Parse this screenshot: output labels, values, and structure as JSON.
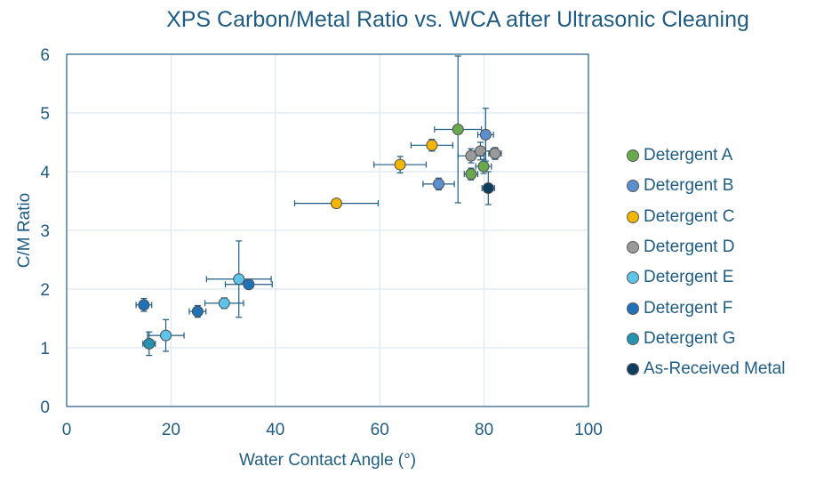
{
  "chart_data": {
    "type": "scatter",
    "title": "XPS Carbon/Metal Ratio vs. WCA after Ultrasonic Cleaning",
    "xlabel": "Water Contact Angle (°)",
    "ylabel": "C/M Ratio",
    "xlim": [
      0,
      100
    ],
    "ylim": [
      0,
      6
    ],
    "xticks": [
      0,
      20,
      40,
      60,
      80,
      100
    ],
    "yticks": [
      0,
      1,
      2,
      3,
      4,
      5,
      6
    ],
    "grid": true,
    "legend_position": "right",
    "series": [
      {
        "name": "Detergent A",
        "color": "#6aa84f",
        "points": [
          {
            "x": 75.0,
            "y": 4.72,
            "xerr": 4.5,
            "yerr": 1.25
          },
          {
            "x": 79.9,
            "y": 4.09,
            "xerr": 1.5,
            "yerr": 0.12
          },
          {
            "x": 77.5,
            "y": 3.96,
            "xerr": 1.3,
            "yerr": 0.1
          }
        ]
      },
      {
        "name": "Detergent B",
        "color": "#5b8fd0",
        "points": [
          {
            "x": 80.3,
            "y": 4.63,
            "xerr": 1.5,
            "yerr": 0.45
          },
          {
            "x": 71.3,
            "y": 3.79,
            "xerr": 3.0,
            "yerr": 0.1
          }
        ]
      },
      {
        "name": "Detergent C",
        "color": "#f2b600",
        "points": [
          {
            "x": 70.0,
            "y": 4.45,
            "xerr": 4.0,
            "yerr": 0.1
          },
          {
            "x": 63.9,
            "y": 4.12,
            "xerr": 5.0,
            "yerr": 0.14
          },
          {
            "x": 51.7,
            "y": 3.46,
            "xerr": 8.0,
            "yerr": 0.06
          }
        ]
      },
      {
        "name": "Detergent D",
        "color": "#9a9a9a",
        "points": [
          {
            "x": 79.3,
            "y": 4.35,
            "xerr": 2.0,
            "yerr": 0.15
          },
          {
            "x": 82.1,
            "y": 4.31,
            "xerr": 1.2,
            "yerr": 0.1
          },
          {
            "x": 77.5,
            "y": 4.27,
            "xerr": 2.5,
            "yerr": 0.12
          }
        ]
      },
      {
        "name": "Detergent E",
        "color": "#5ec4ea",
        "points": [
          {
            "x": 33.0,
            "y": 2.17,
            "xerr": 6.2,
            "yerr": 0.65
          },
          {
            "x": 30.2,
            "y": 1.76,
            "xerr": 3.7,
            "yerr": 0.09
          },
          {
            "x": 19.0,
            "y": 1.21,
            "xerr": 3.5,
            "yerr": 0.27
          }
        ]
      },
      {
        "name": "Detergent F",
        "color": "#1f72b8",
        "points": [
          {
            "x": 34.9,
            "y": 2.08,
            "xerr": 4.5,
            "yerr": 0.06
          },
          {
            "x": 14.8,
            "y": 1.73,
            "xerr": 1.5,
            "yerr": 0.11
          },
          {
            "x": 25.1,
            "y": 1.62,
            "xerr": 1.6,
            "yerr": 0.1
          }
        ]
      },
      {
        "name": "Detergent G",
        "color": "#2493b0",
        "points": [
          {
            "x": 15.8,
            "y": 1.07,
            "xerr": 1.2,
            "yerr": 0.2
          }
        ]
      },
      {
        "name": "As-Received Metal",
        "color": "#0d3e5e",
        "points": [
          {
            "x": 80.8,
            "y": 3.72,
            "xerr": 1.2,
            "yerr": 0.28
          }
        ]
      }
    ]
  }
}
